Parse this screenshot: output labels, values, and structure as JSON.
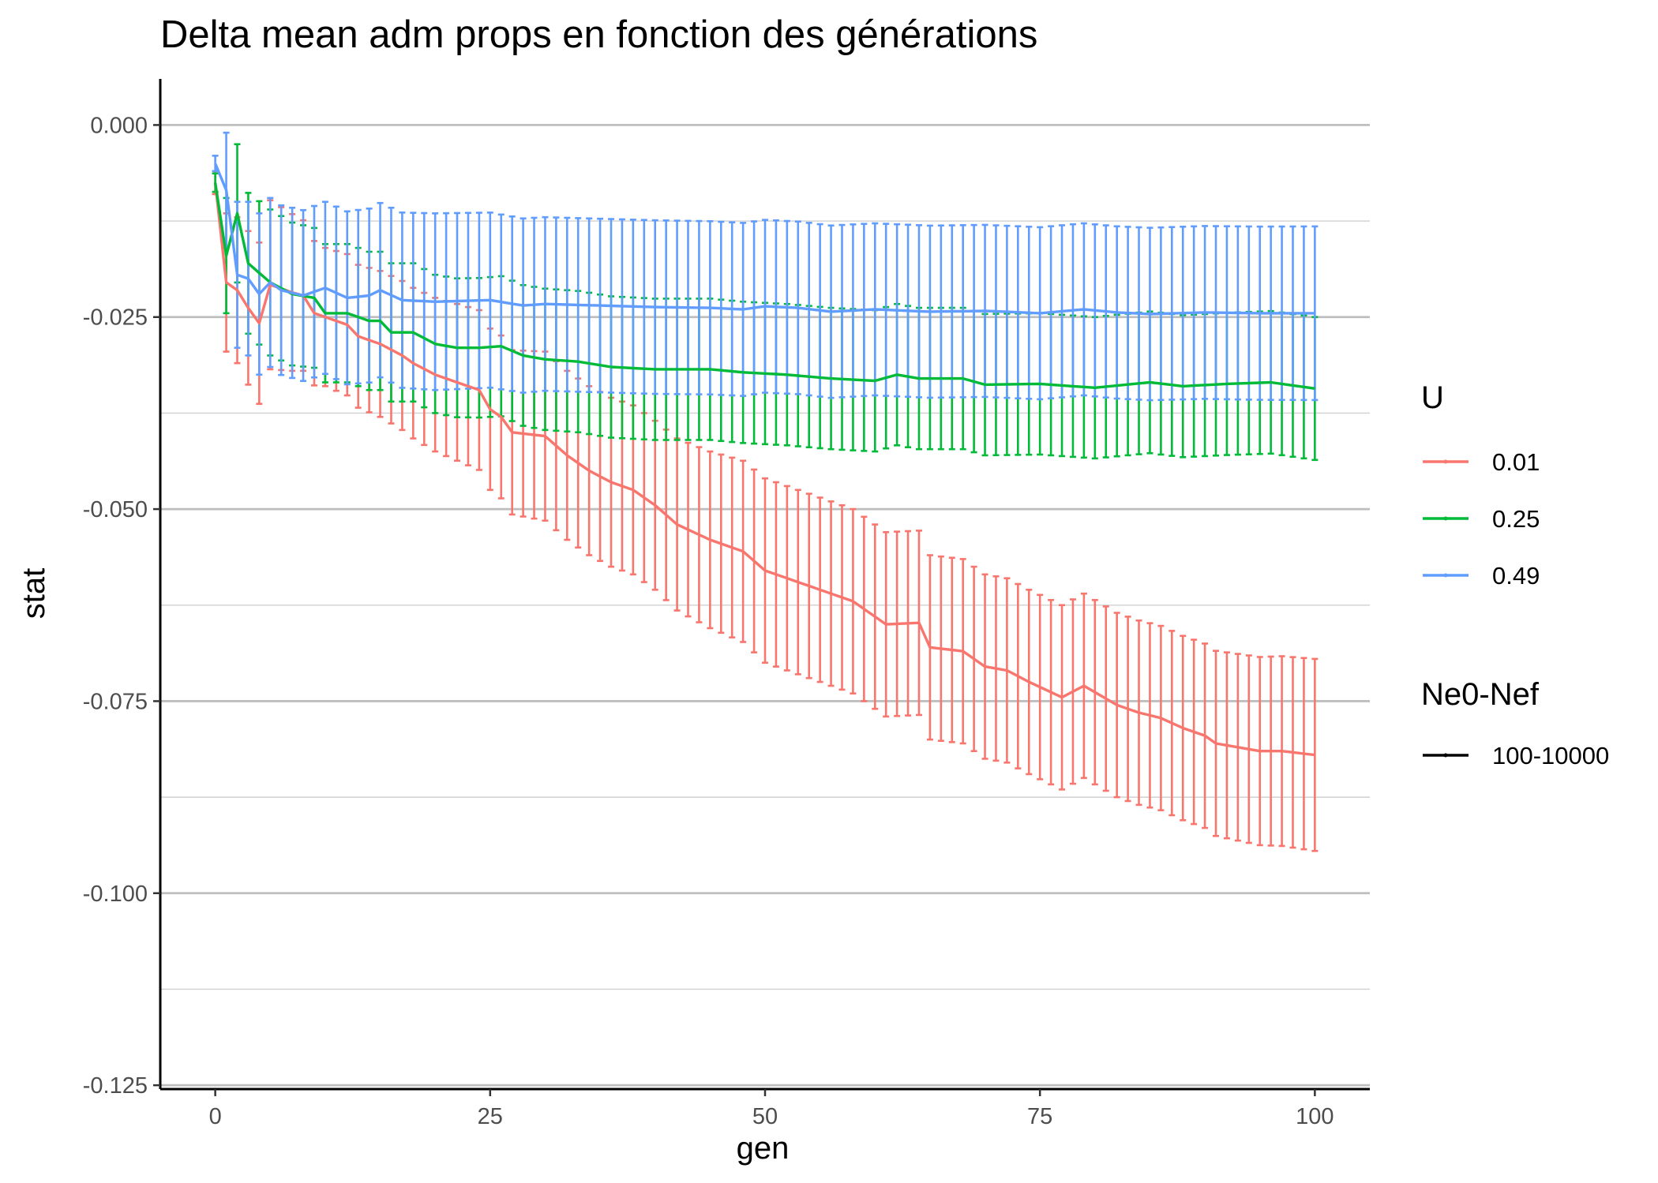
{
  "chart_data": {
    "type": "line",
    "title": "Delta mean adm props en fonction des générations",
    "xlabel": "gen",
    "ylabel": "stat",
    "xlim": [
      -5,
      105
    ],
    "ylim": [
      -0.1255,
      0.006
    ],
    "x_ticks": [
      0,
      25,
      50,
      75,
      100
    ],
    "x_tick_labels": [
      "0",
      "25",
      "50",
      "75",
      "100"
    ],
    "y_ticks": [
      0,
      -0.025,
      -0.05,
      -0.075,
      -0.1,
      -0.125
    ],
    "y_tick_labels": [
      "0.000",
      "-0.025",
      "-0.050",
      "-0.075",
      "-0.100",
      "-0.125"
    ],
    "y_minor_ticks": [
      -0.0125,
      -0.0375,
      -0.0625,
      -0.0875,
      -0.1125
    ],
    "grid": true,
    "error_bars": true,
    "legend_placement": "right",
    "legend": {
      "color_title": "U",
      "linetype_title": "Ne0-Nef",
      "linetype_entries": [
        "100-10000"
      ]
    },
    "series": [
      {
        "name": "0.01",
        "color": "#F8766D",
        "anchors": [
          [
            0,
            -0.0075
          ],
          [
            1,
            -0.0205
          ],
          [
            2,
            -0.0215
          ],
          [
            3,
            -0.0238
          ],
          [
            4,
            -0.0258
          ],
          [
            5,
            -0.0208
          ],
          [
            7,
            -0.0218
          ],
          [
            8,
            -0.0222
          ],
          [
            9,
            -0.0245
          ],
          [
            10,
            -0.025
          ],
          [
            12,
            -0.026
          ],
          [
            13,
            -0.0275
          ],
          [
            15,
            -0.0285
          ],
          [
            17,
            -0.03
          ],
          [
            18,
            -0.031
          ],
          [
            20,
            -0.0325
          ],
          [
            22,
            -0.0335
          ],
          [
            24,
            -0.0345
          ],
          [
            25,
            -0.037
          ],
          [
            26,
            -0.038
          ],
          [
            27,
            -0.04
          ],
          [
            30,
            -0.0405
          ],
          [
            32,
            -0.043
          ],
          [
            34,
            -0.045
          ],
          [
            36,
            -0.0465
          ],
          [
            38,
            -0.0475
          ],
          [
            40,
            -0.0495
          ],
          [
            42,
            -0.052
          ],
          [
            45,
            -0.054
          ],
          [
            48,
            -0.0555
          ],
          [
            50,
            -0.058
          ],
          [
            55,
            -0.0605
          ],
          [
            58,
            -0.062
          ],
          [
            61,
            -0.065
          ],
          [
            64,
            -0.0648
          ],
          [
            65,
            -0.068
          ],
          [
            68,
            -0.0685
          ],
          [
            70,
            -0.0705
          ],
          [
            72,
            -0.071
          ],
          [
            74,
            -0.0725
          ],
          [
            77,
            -0.0745
          ],
          [
            79,
            -0.073
          ],
          [
            82,
            -0.0755
          ],
          [
            84,
            -0.0765
          ],
          [
            86,
            -0.0772
          ],
          [
            88,
            -0.0785
          ],
          [
            90,
            -0.0795
          ],
          [
            91,
            -0.0805
          ],
          [
            93,
            -0.081
          ],
          [
            95,
            -0.0815
          ],
          [
            97,
            -0.0815
          ],
          [
            100,
            -0.082
          ]
        ],
        "error_anchors": [
          [
            0,
            0.0015
          ],
          [
            1,
            0.009
          ],
          [
            5,
            0.011
          ],
          [
            10,
            0.009
          ],
          [
            20,
            0.01
          ],
          [
            30,
            0.011
          ],
          [
            40,
            0.011
          ],
          [
            50,
            0.012
          ],
          [
            60,
            0.012
          ],
          [
            70,
            0.012
          ],
          [
            80,
            0.012
          ],
          [
            90,
            0.012
          ],
          [
            100,
            0.0125
          ]
        ]
      },
      {
        "name": "0.25",
        "color": "#00BA38",
        "anchors": [
          [
            0,
            -0.0075
          ],
          [
            1,
            -0.017
          ],
          [
            2,
            -0.0115
          ],
          [
            3,
            -0.018
          ],
          [
            5,
            -0.0205
          ],
          [
            7,
            -0.022
          ],
          [
            9,
            -0.0225
          ],
          [
            10,
            -0.0245
          ],
          [
            12,
            -0.0245
          ],
          [
            14,
            -0.0255
          ],
          [
            15,
            -0.0255
          ],
          [
            16,
            -0.027
          ],
          [
            18,
            -0.027
          ],
          [
            20,
            -0.0285
          ],
          [
            22,
            -0.029
          ],
          [
            24,
            -0.029
          ],
          [
            26,
            -0.0288
          ],
          [
            28,
            -0.03
          ],
          [
            30,
            -0.0305
          ],
          [
            33,
            -0.0308
          ],
          [
            36,
            -0.0315
          ],
          [
            40,
            -0.0318
          ],
          [
            45,
            -0.0318
          ],
          [
            48,
            -0.0322
          ],
          [
            52,
            -0.0325
          ],
          [
            56,
            -0.033
          ],
          [
            60,
            -0.0333
          ],
          [
            62,
            -0.0325
          ],
          [
            64,
            -0.033
          ],
          [
            68,
            -0.033
          ],
          [
            70,
            -0.0338
          ],
          [
            75,
            -0.0337
          ],
          [
            80,
            -0.0342
          ],
          [
            85,
            -0.0335
          ],
          [
            88,
            -0.034
          ],
          [
            92,
            -0.0337
          ],
          [
            96,
            -0.0335
          ],
          [
            100,
            -0.0343
          ]
        ],
        "error_anchors": [
          [
            0,
            0.0012
          ],
          [
            1,
            0.0075
          ],
          [
            2,
            0.009
          ],
          [
            5,
            0.0095
          ],
          [
            10,
            0.009
          ],
          [
            20,
            0.009
          ],
          [
            30,
            0.0092
          ],
          [
            40,
            0.0092
          ],
          [
            60,
            0.0092
          ],
          [
            80,
            0.0092
          ],
          [
            100,
            0.0093
          ]
        ]
      },
      {
        "name": "0.49",
        "color": "#619CFF",
        "anchors": [
          [
            0,
            -0.005
          ],
          [
            1,
            -0.0085
          ],
          [
            2,
            -0.0195
          ],
          [
            3,
            -0.02
          ],
          [
            4,
            -0.022
          ],
          [
            5,
            -0.0205
          ],
          [
            6,
            -0.0215
          ],
          [
            8,
            -0.0222
          ],
          [
            10,
            -0.0212
          ],
          [
            12,
            -0.0225
          ],
          [
            14,
            -0.0222
          ],
          [
            15,
            -0.0215
          ],
          [
            17,
            -0.0228
          ],
          [
            20,
            -0.023
          ],
          [
            25,
            -0.0228
          ],
          [
            28,
            -0.0235
          ],
          [
            30,
            -0.0233
          ],
          [
            35,
            -0.0235
          ],
          [
            40,
            -0.0237
          ],
          [
            45,
            -0.0238
          ],
          [
            48,
            -0.024
          ],
          [
            50,
            -0.0236
          ],
          [
            53,
            -0.0238
          ],
          [
            56,
            -0.0243
          ],
          [
            60,
            -0.024
          ],
          [
            65,
            -0.0243
          ],
          [
            70,
            -0.0242
          ],
          [
            75,
            -0.0245
          ],
          [
            79,
            -0.024
          ],
          [
            82,
            -0.0244
          ],
          [
            85,
            -0.0246
          ],
          [
            90,
            -0.0244
          ],
          [
            95,
            -0.0245
          ],
          [
            100,
            -0.0245
          ]
        ],
        "error_anchors": [
          [
            0,
            0.001
          ],
          [
            1,
            0.0075
          ],
          [
            2,
            0.0095
          ],
          [
            5,
            0.011
          ],
          [
            10,
            0.0112
          ],
          [
            20,
            0.0115
          ],
          [
            30,
            0.0113
          ],
          [
            40,
            0.0113
          ],
          [
            60,
            0.0112
          ],
          [
            80,
            0.0112
          ],
          [
            100,
            0.0113
          ]
        ]
      }
    ]
  }
}
